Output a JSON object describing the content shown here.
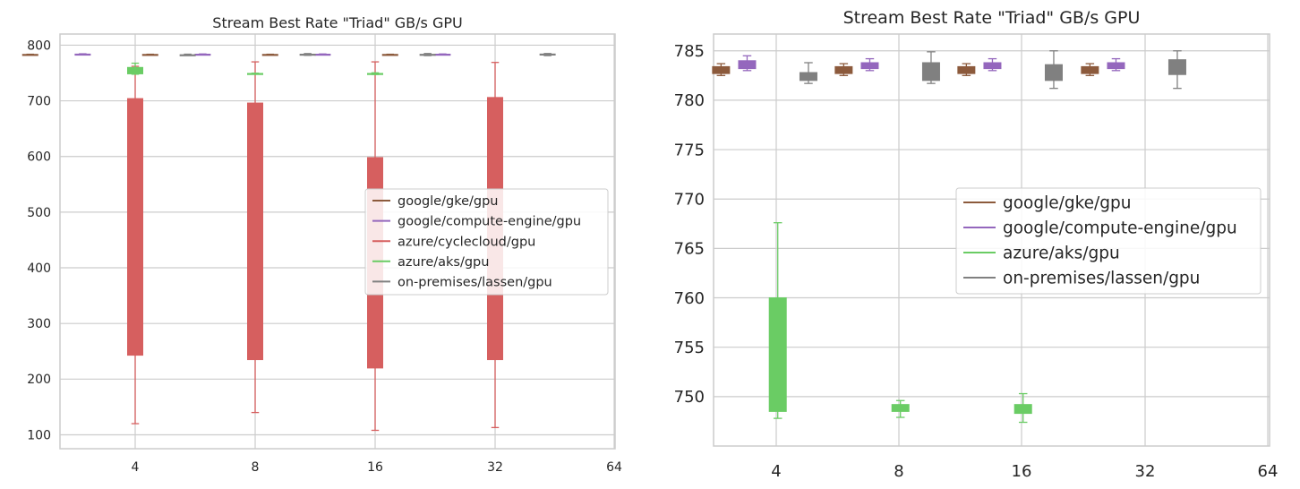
{
  "chart_data": [
    {
      "type": "box",
      "title": "Stream Best Rate \"Triad\" GB/s GPU",
      "xlabel": "",
      "ylabel": "",
      "categories": [
        "4",
        "8",
        "16",
        "32",
        "64"
      ],
      "ylim": [
        75,
        820
      ],
      "yticks": [
        100,
        200,
        300,
        400,
        500,
        600,
        700,
        800
      ],
      "grid": true,
      "legend_position": "center-right",
      "series": [
        {
          "name": "google/gke/gpu",
          "color": "#8c5a3c",
          "boxes": [
            {
              "category": "4",
              "whislo": 782.5,
              "q1": 782.7,
              "q3": 783.4,
              "whishi": 783.7
            },
            {
              "category": "8",
              "whislo": 782.5,
              "q1": 782.7,
              "q3": 783.4,
              "whishi": 783.7
            },
            {
              "category": "16",
              "whislo": 782.5,
              "q1": 782.7,
              "q3": 783.4,
              "whishi": 783.7
            },
            {
              "category": "32",
              "whislo": 782.5,
              "q1": 782.7,
              "q3": 783.4,
              "whishi": 783.7
            }
          ]
        },
        {
          "name": "google/compute-engine/gpu",
          "color": "#9467bd",
          "boxes": [
            {
              "category": "4",
              "whislo": 783.0,
              "q1": 783.2,
              "q3": 784.0,
              "whishi": 784.5
            },
            {
              "category": "8",
              "whislo": 783.0,
              "q1": 783.2,
              "q3": 783.8,
              "whishi": 784.2
            },
            {
              "category": "16",
              "whislo": 783.0,
              "q1": 783.2,
              "q3": 783.8,
              "whishi": 784.2
            },
            {
              "category": "32",
              "whislo": 783.0,
              "q1": 783.2,
              "q3": 783.8,
              "whishi": 784.2
            }
          ]
        },
        {
          "name": "azure/cyclecloud/gpu",
          "color": "#d65f5f",
          "boxes": [
            {
              "category": "4",
              "whislo": 120,
              "q1": 243,
              "q3": 704,
              "whishi": 762
            },
            {
              "category": "8",
              "whislo": 140,
              "q1": 235,
              "q3": 696,
              "whishi": 770
            },
            {
              "category": "16",
              "whislo": 108,
              "q1": 220,
              "q3": 598,
              "whishi": 770
            },
            {
              "category": "32",
              "whislo": 113,
              "q1": 235,
              "q3": 706,
              "whishi": 769
            }
          ]
        },
        {
          "name": "azure/aks/gpu",
          "color": "#6acc64",
          "boxes": [
            {
              "category": "4",
              "whislo": 747.8,
              "q1": 748.5,
              "q3": 760.0,
              "whishi": 767.6
            },
            {
              "category": "8",
              "whislo": 747.9,
              "q1": 748.5,
              "q3": 749.2,
              "whishi": 749.6
            },
            {
              "category": "16",
              "whislo": 747.4,
              "q1": 748.3,
              "q3": 749.2,
              "whishi": 750.3
            }
          ]
        },
        {
          "name": "on-premises/lassen/gpu",
          "color": "#808080",
          "boxes": [
            {
              "category": "4",
              "whislo": 781.7,
              "q1": 782.0,
              "q3": 782.8,
              "whishi": 783.8
            },
            {
              "category": "8",
              "whislo": 781.7,
              "q1": 782.0,
              "q3": 783.8,
              "whishi": 784.9
            },
            {
              "category": "16",
              "whislo": 781.2,
              "q1": 782.0,
              "q3": 783.6,
              "whishi": 785.0
            },
            {
              "category": "32",
              "whislo": 781.2,
              "q1": 782.6,
              "q3": 784.1,
              "whishi": 785.0
            }
          ]
        }
      ]
    },
    {
      "type": "box",
      "title": "Stream Best Rate \"Triad\" GB/s GPU",
      "xlabel": "",
      "ylabel": "",
      "categories": [
        "4",
        "8",
        "16",
        "32",
        "64"
      ],
      "ylim": [
        745.0,
        786.7
      ],
      "yticks": [
        750,
        755,
        760,
        765,
        770,
        775,
        780,
        785
      ],
      "grid": true,
      "legend_position": "center-right",
      "series": [
        {
          "name": "google/gke/gpu",
          "color": "#8c5a3c",
          "boxes": [
            {
              "category": "4",
              "whislo": 782.5,
              "q1": 782.7,
              "q3": 783.4,
              "whishi": 783.7
            },
            {
              "category": "8",
              "whislo": 782.5,
              "q1": 782.7,
              "q3": 783.4,
              "whishi": 783.7
            },
            {
              "category": "16",
              "whislo": 782.5,
              "q1": 782.7,
              "q3": 783.4,
              "whishi": 783.7
            },
            {
              "category": "32",
              "whislo": 782.5,
              "q1": 782.7,
              "q3": 783.4,
              "whishi": 783.7
            }
          ]
        },
        {
          "name": "google/compute-engine/gpu",
          "color": "#9467bd",
          "boxes": [
            {
              "category": "4",
              "whislo": 783.0,
              "q1": 783.2,
              "q3": 784.0,
              "whishi": 784.5
            },
            {
              "category": "8",
              "whislo": 783.0,
              "q1": 783.2,
              "q3": 783.8,
              "whishi": 784.2
            },
            {
              "category": "16",
              "whislo": 783.0,
              "q1": 783.2,
              "q3": 783.8,
              "whishi": 784.2
            },
            {
              "category": "32",
              "whislo": 783.0,
              "q1": 783.2,
              "q3": 783.8,
              "whishi": 784.2
            }
          ]
        },
        {
          "name": "azure/aks/gpu",
          "color": "#6acc64",
          "boxes": [
            {
              "category": "4",
              "whislo": 747.8,
              "q1": 748.5,
              "q3": 760.0,
              "whishi": 767.6
            },
            {
              "category": "8",
              "whislo": 747.9,
              "q1": 748.5,
              "q3": 749.2,
              "whishi": 749.6
            },
            {
              "category": "16",
              "whislo": 747.4,
              "q1": 748.3,
              "q3": 749.2,
              "whishi": 750.3
            }
          ]
        },
        {
          "name": "on-premises/lassen/gpu",
          "color": "#808080",
          "boxes": [
            {
              "category": "4",
              "whislo": 781.7,
              "q1": 782.0,
              "q3": 782.8,
              "whishi": 783.8
            },
            {
              "category": "8",
              "whislo": 781.7,
              "q1": 782.0,
              "q3": 783.8,
              "whishi": 784.9
            },
            {
              "category": "16",
              "whislo": 781.2,
              "q1": 782.0,
              "q3": 783.6,
              "whishi": 785.0
            },
            {
              "category": "32",
              "whislo": 781.2,
              "q1": 782.6,
              "q3": 784.1,
              "whishi": 785.0
            }
          ]
        }
      ]
    }
  ]
}
